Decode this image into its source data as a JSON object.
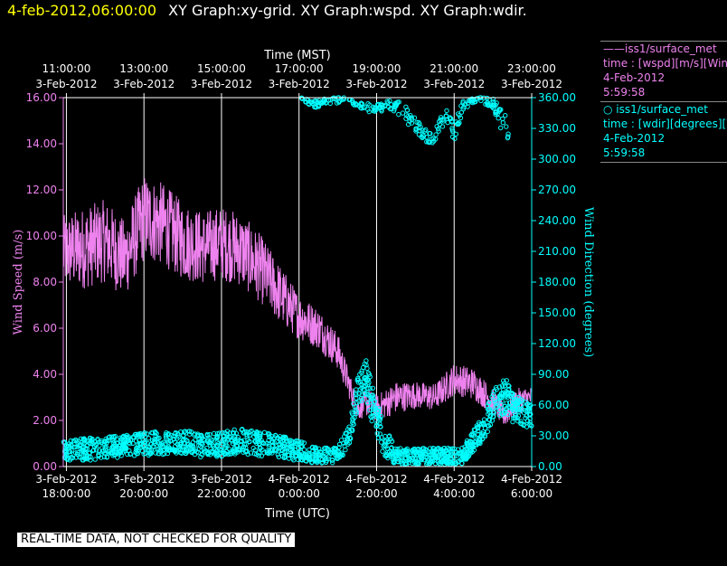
{
  "header": {
    "date": "4-feb-2012,06:00:00",
    "title": "XY Graph:xy-grid.  XY Graph:wspd.  XY Graph:wdir."
  },
  "legend": [
    {
      "line1": "——iss1/surface_met",
      "line2": "time : [wspd][m/s][Wind Speed]",
      "line3": "4-Feb-2012",
      "line4": "5:59:58",
      "color": "#ee82ee"
    },
    {
      "line1": "○ iss1/surface_met",
      "line2": "time : [wdir][degrees][Wind Direction]",
      "line3": "4-Feb-2012",
      "line4": "5:59:58",
      "color": "#00ffff"
    }
  ],
  "footer": "REAL-TIME DATA, NOT CHECKED FOR QUALITY",
  "colors": {
    "wspd": "#ee82ee",
    "wdir": "#00ffff",
    "grid": "#ffffff",
    "background": "#000000"
  },
  "chart_data": {
    "type": "line",
    "x_axis_bottom": {
      "label": "Time (UTC)",
      "range_hours_utc": [
        17.92,
        30.0
      ],
      "ticks": [
        {
          "at": 18,
          "line1": "3-Feb-2012",
          "line2": "18:00:00"
        },
        {
          "at": 20,
          "line1": "3-Feb-2012",
          "line2": "20:00:00"
        },
        {
          "at": 22,
          "line1": "3-Feb-2012",
          "line2": "22:00:00"
        },
        {
          "at": 24,
          "line1": "4-Feb-2012",
          "line2": "0:00:00"
        },
        {
          "at": 26,
          "line1": "4-Feb-2012",
          "line2": "2:00:00"
        },
        {
          "at": 28,
          "line1": "4-Feb-2012",
          "line2": "4:00:00"
        },
        {
          "at": 30,
          "line1": "4-Feb-2012",
          "line2": "6:00:00"
        }
      ]
    },
    "x_axis_top": {
      "label": "Time (MST)",
      "ticks": [
        {
          "at": 18,
          "line1": "11:00:00",
          "line2": "3-Feb-2012"
        },
        {
          "at": 20,
          "line1": "13:00:00",
          "line2": "3-Feb-2012"
        },
        {
          "at": 22,
          "line1": "15:00:00",
          "line2": "3-Feb-2012"
        },
        {
          "at": 24,
          "line1": "17:00:00",
          "line2": "3-Feb-2012"
        },
        {
          "at": 26,
          "line1": "19:00:00",
          "line2": "3-Feb-2012"
        },
        {
          "at": 28,
          "line1": "21:00:00",
          "line2": "3-Feb-2012"
        },
        {
          "at": 30,
          "line1": "23:00:00",
          "line2": "3-Feb-2012"
        }
      ]
    },
    "y_left": {
      "label": "Wind Speed (m/s)",
      "range": [
        0,
        16
      ],
      "ticks": [
        "0.00",
        "2.00",
        "4.00",
        "6.00",
        "8.00",
        "10.00",
        "12.00",
        "14.00",
        "16.00"
      ]
    },
    "y_right": {
      "label": "Wind Direction (degrees)",
      "range": [
        0,
        360
      ],
      "ticks": [
        "0.00",
        "30.00",
        "60.00",
        "90.00",
        "120.00",
        "150.00",
        "180.00",
        "210.00",
        "240.00",
        "270.00",
        "300.00",
        "330.00",
        "360.00"
      ]
    },
    "grid": "vertical",
    "series": [
      {
        "name": "wspd",
        "kind": "line",
        "x": [
          17.92,
          18.5,
          19.0,
          19.5,
          20.0,
          20.5,
          21.0,
          21.5,
          22.0,
          22.5,
          23.0,
          23.5,
          24.0,
          24.5,
          25.0,
          25.3,
          25.5,
          25.8,
          26.0,
          26.5,
          27.0,
          27.5,
          28.0,
          28.5,
          29.0,
          29.3,
          29.6,
          30.0
        ],
        "y": [
          9.3,
          9.5,
          9.8,
          9.0,
          10.8,
          10.5,
          9.8,
          9.5,
          9.7,
          9.4,
          8.6,
          7.5,
          6.5,
          6.0,
          5.0,
          3.5,
          2.5,
          2.8,
          2.5,
          3.0,
          3.1,
          3.0,
          3.8,
          3.6,
          2.8,
          2.2,
          2.8,
          3.0
        ],
        "noise_amplitude": [
          1.6,
          1.8,
          1.8,
          1.7,
          1.9,
          1.8,
          1.7,
          1.6,
          1.6,
          1.6,
          1.5,
          1.3,
          1.0,
          0.9,
          0.8,
          0.6,
          0.5,
          0.6,
          0.6,
          0.7,
          0.6,
          0.6,
          0.7,
          0.7,
          0.6,
          0.5,
          0.6,
          0.5
        ]
      },
      {
        "name": "wdir",
        "kind": "scatter",
        "x": [
          17.92,
          18.5,
          19.0,
          19.5,
          20.0,
          20.5,
          21.0,
          21.5,
          22.0,
          22.5,
          23.0,
          23.5,
          24.0,
          24.5,
          25.0,
          25.3,
          25.5,
          25.7,
          25.9,
          26.2,
          26.5,
          28.2,
          28.5,
          28.8,
          29.0,
          29.3,
          29.6,
          30.0
        ],
        "y": [
          15,
          17,
          18,
          20,
          22,
          23,
          25,
          20,
          22,
          25,
          22,
          20,
          15,
          10,
          12,
          30,
          70,
          90,
          60,
          25,
          10,
          10,
          25,
          40,
          60,
          70,
          55,
          50
        ],
        "spread": [
          10,
          11,
          11,
          11,
          11,
          12,
          12,
          11,
          12,
          12,
          12,
          11,
          10,
          8,
          8,
          10,
          15,
          20,
          20,
          15,
          8,
          8,
          10,
          12,
          15,
          18,
          15,
          12
        ]
      },
      {
        "name": "wdir-upper",
        "kind": "scatter",
        "x": [
          24.05,
          24.4,
          24.8,
          25.3,
          25.7,
          26.5,
          26.8,
          27.0,
          27.2,
          27.4,
          27.6,
          27.8,
          28.0,
          28.2,
          28.4,
          28.6,
          29.0,
          29.2,
          29.4
        ],
        "y": [
          358,
          353,
          357,
          358,
          350,
          352,
          342,
          334,
          325,
          320,
          330,
          345,
          325,
          350,
          357,
          359,
          355,
          340,
          330
        ],
        "spread": [
          2,
          4,
          3,
          3,
          4,
          6,
          8,
          7,
          6,
          6,
          7,
          8,
          8,
          6,
          4,
          2,
          5,
          10,
          12
        ]
      }
    ]
  }
}
